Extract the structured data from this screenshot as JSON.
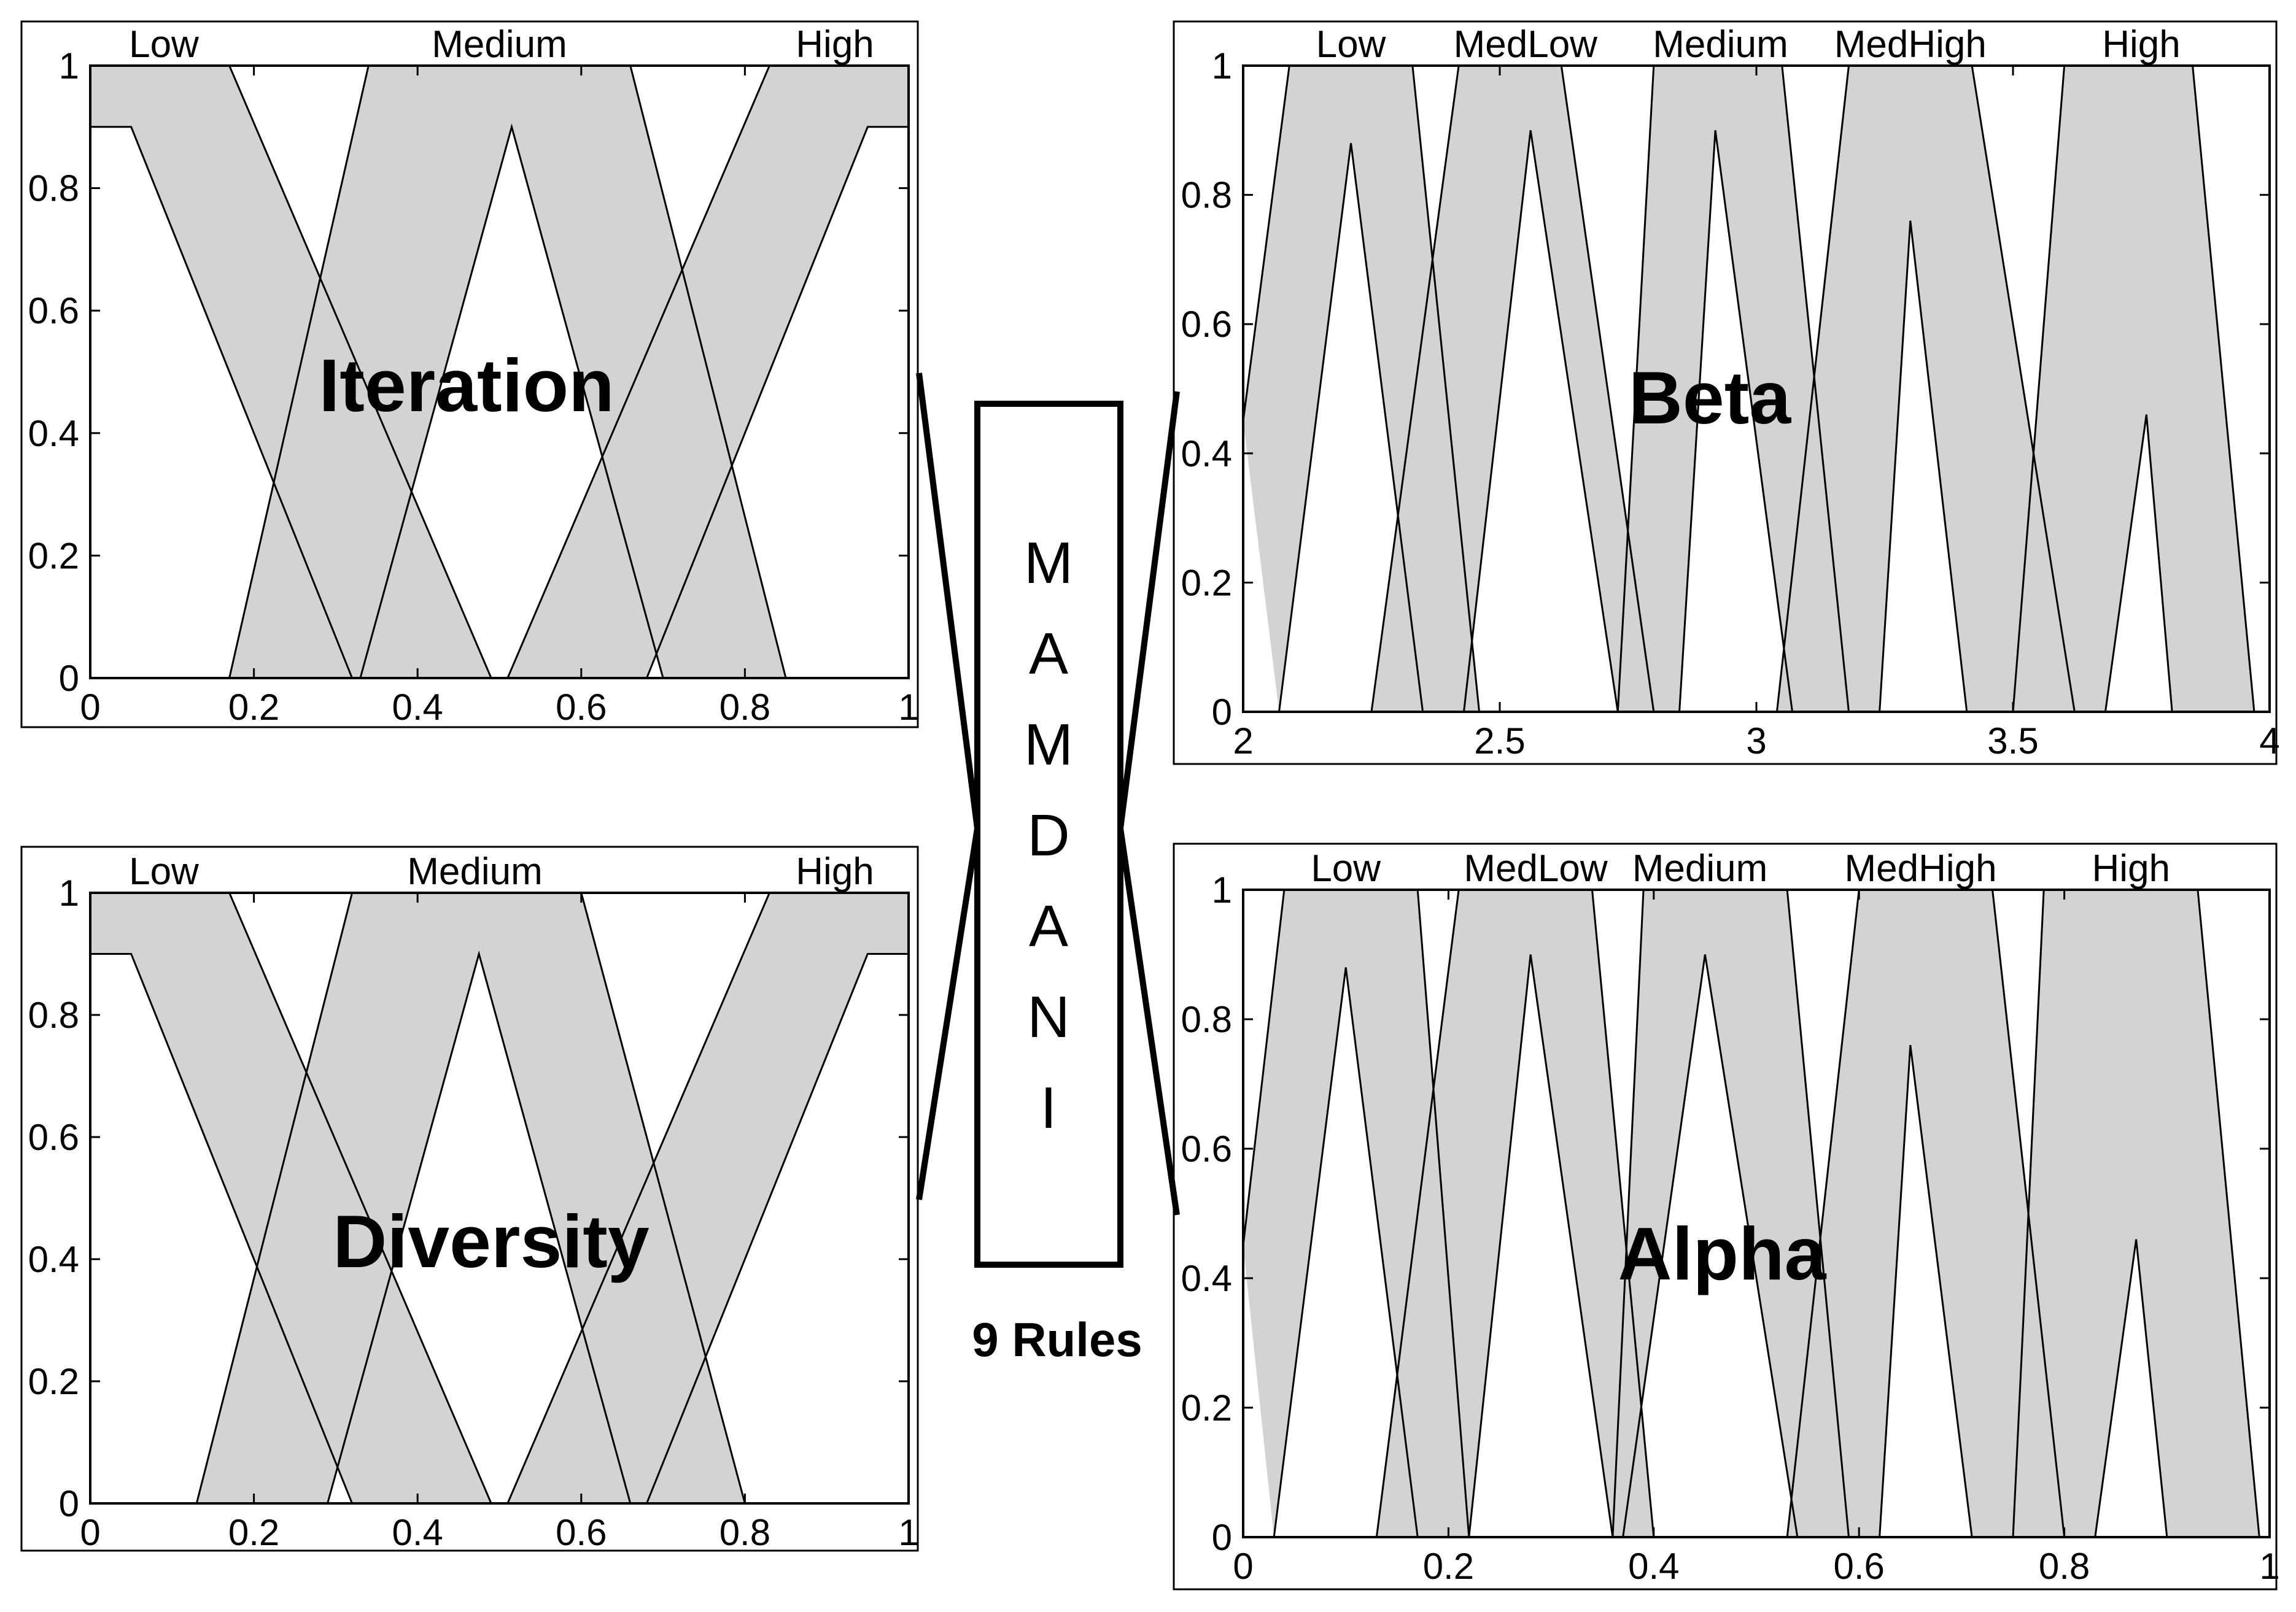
{
  "center": {
    "letters": [
      "M",
      "A",
      "M",
      "D",
      "A",
      "N",
      "I"
    ],
    "rules_label": "9 Rules"
  },
  "chart_data": [
    {
      "type": "line",
      "name": "iteration",
      "title": "Iteration",
      "xlim": [
        0,
        1
      ],
      "ylim": [
        0,
        1
      ],
      "xticks": [
        "0",
        "0.2",
        "0.4",
        "0.6",
        "0.8",
        "1"
      ],
      "yticks": [
        "0",
        "0.2",
        "0.4",
        "0.6",
        "0.8",
        "1"
      ],
      "mf_labels": [
        {
          "text": "Low",
          "x": 0.09
        },
        {
          "text": "Medium",
          "x": 0.5
        },
        {
          "text": "High",
          "x": 0.91
        }
      ],
      "mfs": [
        {
          "name": "Low",
          "upper": [
            [
              0,
              1
            ],
            [
              0.17,
              1
            ],
            [
              0.49,
              0
            ]
          ],
          "lower": [
            [
              0,
              0.9
            ],
            [
              0.05,
              0.9
            ],
            [
              0.32,
              0
            ]
          ]
        },
        {
          "name": "Medium",
          "upper": [
            [
              0.17,
              0
            ],
            [
              0.34,
              1
            ],
            [
              0.66,
              1
            ],
            [
              0.85,
              0
            ]
          ],
          "lower": [
            [
              0.33,
              0
            ],
            [
              0.515,
              0.9
            ],
            [
              0.7,
              0
            ]
          ]
        },
        {
          "name": "High",
          "upper": [
            [
              0.51,
              0
            ],
            [
              0.83,
              1
            ],
            [
              1,
              1
            ]
          ],
          "lower": [
            [
              0.68,
              0
            ],
            [
              0.95,
              0.9
            ],
            [
              1,
              0.9
            ]
          ]
        }
      ]
    },
    {
      "type": "line",
      "name": "diversity",
      "title": "Diversity",
      "xlim": [
        0,
        1
      ],
      "ylim": [
        0,
        1
      ],
      "xticks": [
        "0",
        "0.2",
        "0.4",
        "0.6",
        "0.8",
        "1"
      ],
      "yticks": [
        "0",
        "0.2",
        "0.4",
        "0.6",
        "0.8",
        "1"
      ],
      "mf_labels": [
        {
          "text": "Low",
          "x": 0.09
        },
        {
          "text": "Medium",
          "x": 0.47
        },
        {
          "text": "High",
          "x": 0.91
        }
      ],
      "mfs": [
        {
          "name": "Low",
          "upper": [
            [
              0,
              1
            ],
            [
              0.17,
              1
            ],
            [
              0.49,
              0
            ]
          ],
          "lower": [
            [
              0,
              0.9
            ],
            [
              0.05,
              0.9
            ],
            [
              0.32,
              0
            ]
          ]
        },
        {
          "name": "Medium",
          "upper": [
            [
              0.13,
              0
            ],
            [
              0.32,
              1
            ],
            [
              0.6,
              1
            ],
            [
              0.8,
              0
            ]
          ],
          "lower": [
            [
              0.29,
              0
            ],
            [
              0.475,
              0.9
            ],
            [
              0.66,
              0
            ]
          ]
        },
        {
          "name": "High",
          "upper": [
            [
              0.51,
              0
            ],
            [
              0.83,
              1
            ],
            [
              1,
              1
            ]
          ],
          "lower": [
            [
              0.68,
              0
            ],
            [
              0.95,
              0.9
            ],
            [
              1,
              0.9
            ]
          ]
        }
      ]
    },
    {
      "type": "line",
      "name": "beta",
      "title": "Beta",
      "xlim": [
        2,
        4
      ],
      "ylim": [
        0,
        1
      ],
      "xticks": [
        "2",
        "2.5",
        "3",
        "3.5",
        "4"
      ],
      "yticks": [
        "0",
        "0.2",
        "0.4",
        "0.6",
        "0.8",
        "1"
      ],
      "mf_labels": [
        {
          "text": "Low",
          "x": 2.21
        },
        {
          "text": "MedLow",
          "x": 2.55
        },
        {
          "text": "Medium",
          "x": 2.93
        },
        {
          "text": "MedHigh",
          "x": 3.3
        },
        {
          "text": "High",
          "x": 3.75
        }
      ],
      "mfs": [
        {
          "name": "Low",
          "upper": [
            [
              2,
              0.45
            ],
            [
              2.09,
              1
            ],
            [
              2.33,
              1
            ],
            [
              2.46,
              0
            ]
          ],
          "lower": [
            [
              2.07,
              0
            ],
            [
              2.21,
              0.88
            ],
            [
              2.35,
              0
            ]
          ]
        },
        {
          "name": "MedLow",
          "upper": [
            [
              2.25,
              0
            ],
            [
              2.42,
              1
            ],
            [
              2.62,
              1
            ],
            [
              2.8,
              0
            ]
          ],
          "lower": [
            [
              2.43,
              0
            ],
            [
              2.56,
              0.9
            ],
            [
              2.73,
              0
            ]
          ]
        },
        {
          "name": "Medium",
          "upper": [
            [
              2.73,
              0
            ],
            [
              2.8,
              1
            ],
            [
              3.05,
              1
            ],
            [
              3.18,
              0
            ]
          ],
          "lower": [
            [
              2.85,
              0
            ],
            [
              2.92,
              0.9
            ],
            [
              3.07,
              0
            ]
          ]
        },
        {
          "name": "MedHigh",
          "upper": [
            [
              3.04,
              0
            ],
            [
              3.18,
              1
            ],
            [
              3.42,
              1
            ],
            [
              3.62,
              0
            ]
          ],
          "lower": [
            [
              3.24,
              0
            ],
            [
              3.3,
              0.76
            ],
            [
              3.41,
              0
            ]
          ]
        },
        {
          "name": "High",
          "upper": [
            [
              3.5,
              0
            ],
            [
              3.6,
              1
            ],
            [
              3.85,
              1
            ],
            [
              3.97,
              0
            ]
          ],
          "lower": [
            [
              3.68,
              0
            ],
            [
              3.76,
              0.46
            ],
            [
              3.81,
              0
            ]
          ]
        }
      ]
    },
    {
      "type": "line",
      "name": "alpha",
      "title": "Alpha",
      "xlim": [
        0,
        1
      ],
      "ylim": [
        0,
        1
      ],
      "xticks": [
        "0",
        "0.2",
        "0.4",
        "0.6",
        "0.8",
        "1"
      ],
      "yticks": [
        "0",
        "0.2",
        "0.4",
        "0.6",
        "0.8",
        "1"
      ],
      "mf_labels": [
        {
          "text": "Low",
          "x": 0.1
        },
        {
          "text": "MedLow",
          "x": 0.285
        },
        {
          "text": "Medium",
          "x": 0.445
        },
        {
          "text": "MedHigh",
          "x": 0.66
        },
        {
          "text": "High",
          "x": 0.865
        }
      ],
      "mfs": [
        {
          "name": "Low",
          "upper": [
            [
              0,
              0.45
            ],
            [
              0.04,
              1
            ],
            [
              0.17,
              1
            ],
            [
              0.22,
              0
            ]
          ],
          "lower": [
            [
              0.03,
              0
            ],
            [
              0.1,
              0.88
            ],
            [
              0.17,
              0
            ]
          ]
        },
        {
          "name": "MedLow",
          "upper": [
            [
              0.13,
              0
            ],
            [
              0.21,
              1
            ],
            [
              0.34,
              1
            ],
            [
              0.4,
              0
            ]
          ],
          "lower": [
            [
              0.22,
              0
            ],
            [
              0.28,
              0.9
            ],
            [
              0.36,
              0
            ]
          ]
        },
        {
          "name": "Medium",
          "upper": [
            [
              0.36,
              0
            ],
            [
              0.39,
              1
            ],
            [
              0.53,
              1
            ],
            [
              0.59,
              0
            ]
          ],
          "lower": [
            [
              0.37,
              0
            ],
            [
              0.45,
              0.9
            ],
            [
              0.54,
              0
            ]
          ]
        },
        {
          "name": "MedHigh",
          "upper": [
            [
              0.53,
              0
            ],
            [
              0.6,
              1
            ],
            [
              0.73,
              1
            ],
            [
              0.8,
              0
            ]
          ],
          "lower": [
            [
              0.62,
              0
            ],
            [
              0.65,
              0.76
            ],
            [
              0.71,
              0
            ]
          ]
        },
        {
          "name": "High",
          "upper": [
            [
              0.75,
              0
            ],
            [
              0.78,
              1
            ],
            [
              0.93,
              1
            ],
            [
              0.99,
              0
            ]
          ],
          "lower": [
            [
              0.83,
              0
            ],
            [
              0.87,
              0.46
            ],
            [
              0.9,
              0
            ]
          ]
        }
      ]
    }
  ]
}
